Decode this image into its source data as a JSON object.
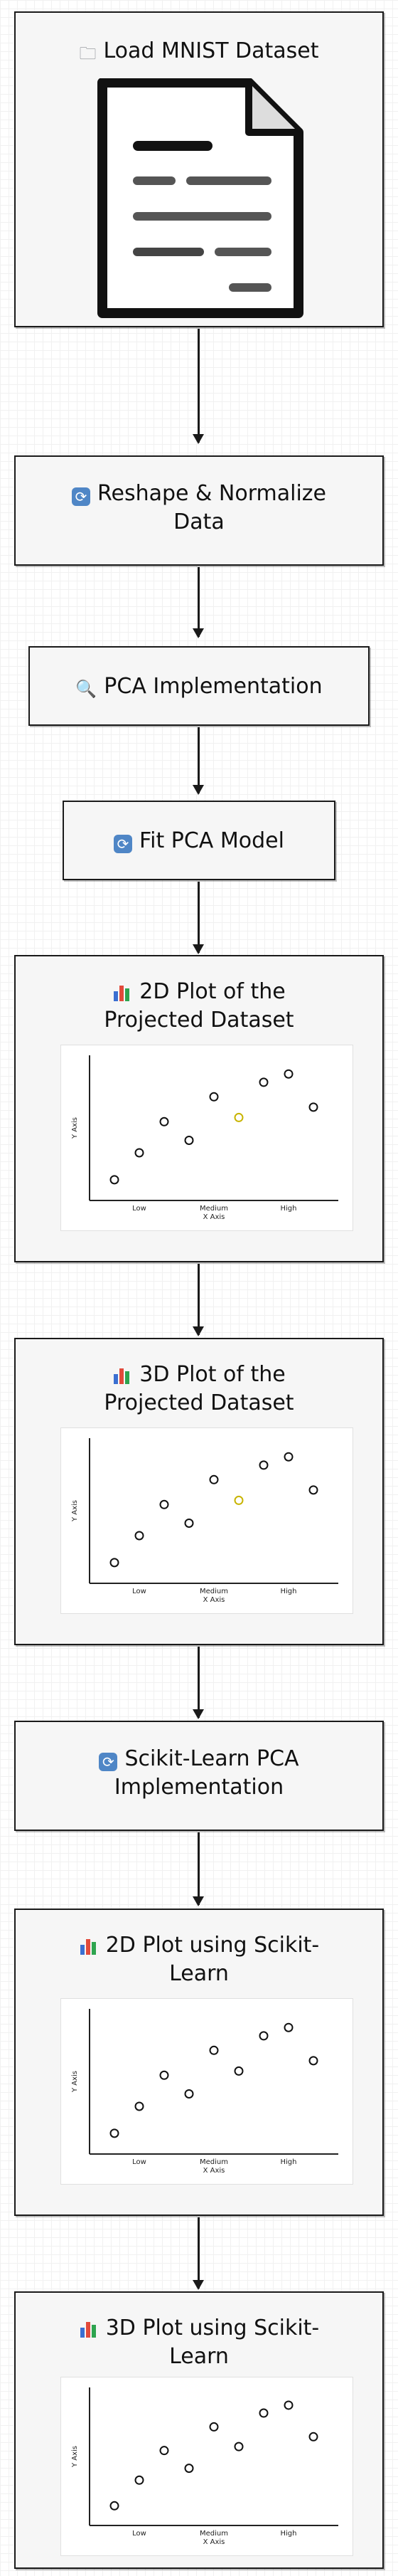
{
  "nodes": {
    "load": {
      "label": "Load MNIST Dataset",
      "icon": "folder-icon"
    },
    "reshape": {
      "line1": "Reshape & Normalize",
      "line2": "Data",
      "icon": "refresh-icon"
    },
    "pca": {
      "label": "PCA Implementation",
      "icon": "search-icon"
    },
    "fit": {
      "label": "Fit PCA Model",
      "icon": "refresh-icon"
    },
    "plot2d": {
      "line1": "2D Plot of the",
      "line2": "Projected Dataset",
      "icon": "bar-chart-icon"
    },
    "plot3d": {
      "line1": "3D Plot of the",
      "line2": "Projected Dataset",
      "icon": "bar-chart-icon"
    },
    "sklearn": {
      "line1": "Scikit-Learn PCA",
      "line2": "Implementation",
      "icon": "refresh-icon"
    },
    "sk2d": {
      "line1": "2D Plot using Scikit-",
      "line2": "Learn",
      "icon": "bar-chart-icon"
    },
    "sk3d": {
      "line1": "3D Plot using Scikit-",
      "line2": "Learn",
      "icon": "bar-chart-icon"
    }
  },
  "colors": {
    "accent_icon": "#4f86c6",
    "border": "#1a1a1a",
    "marker_highlight": "#c8b400"
  },
  "chart_data": [
    {
      "type": "scatter",
      "xlabel": "X Axis",
      "ylabel": "Y Axis",
      "categories": [
        "Low",
        "Medium",
        "High"
      ],
      "x": [
        1,
        2,
        3,
        4,
        5,
        6,
        7,
        8,
        9
      ],
      "y": [
        1,
        2.3,
        3.8,
        2.9,
        5.0,
        4.0,
        5.7,
        6.1,
        4.5
      ],
      "highlight_index": 5
    },
    {
      "type": "scatter",
      "xlabel": "X Axis",
      "ylabel": "Y Axis",
      "categories": [
        "Low",
        "Medium",
        "High"
      ],
      "x": [
        1,
        2,
        3,
        4,
        5,
        6,
        7,
        8,
        9
      ],
      "y": [
        1,
        2.3,
        3.8,
        2.9,
        5.0,
        4.0,
        5.7,
        6.1,
        4.5
      ],
      "highlight_index": 5
    },
    {
      "type": "scatter",
      "xlabel": "X Axis",
      "ylabel": "Y Axis",
      "categories": [
        "Low",
        "Medium",
        "High"
      ],
      "x": [
        1,
        2,
        3,
        4,
        5,
        6,
        7,
        8,
        9
      ],
      "y": [
        1,
        2.3,
        3.8,
        2.9,
        5.0,
        4.0,
        5.7,
        6.1,
        4.5
      ],
      "highlight_index": -1
    },
    {
      "type": "scatter",
      "xlabel": "X Axis",
      "ylabel": "Y Axis",
      "categories": [
        "Low",
        "Medium",
        "High"
      ],
      "x": [
        1,
        2,
        3,
        4,
        5,
        6,
        7,
        8,
        9
      ],
      "y": [
        1,
        2.3,
        3.8,
        2.9,
        5.0,
        4.0,
        5.7,
        6.1,
        4.5
      ],
      "highlight_index": -1
    }
  ]
}
